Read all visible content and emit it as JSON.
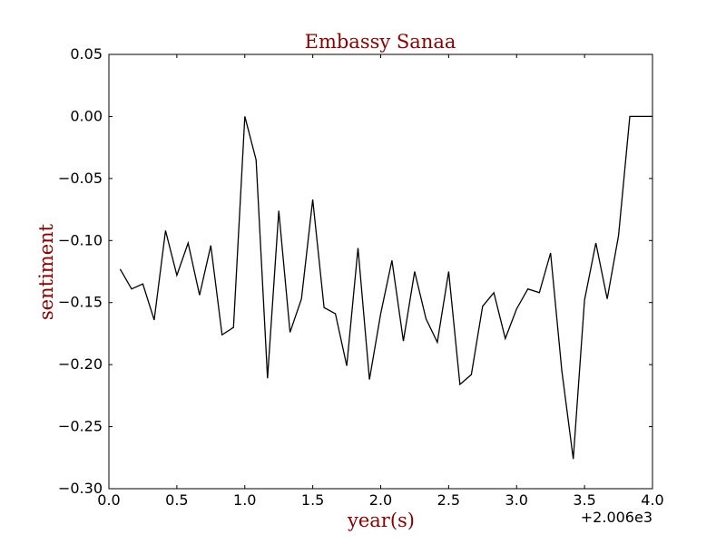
{
  "colors": {
    "text_accent": "#8b0000",
    "line": "#000000",
    "axes": "#000000",
    "background": "#ffffff"
  },
  "chart_data": {
    "type": "line",
    "title": "Embassy Sanaa",
    "xlabel": "year(s)",
    "ylabel": "sentiment",
    "offset_label": "+2.006e3",
    "xlim": [
      0.0,
      4.0
    ],
    "ylim": [
      -0.3,
      0.05
    ],
    "grid": false,
    "x_ticks": [
      0.0,
      0.5,
      1.0,
      1.5,
      2.0,
      2.5,
      3.0,
      3.5,
      4.0
    ],
    "x_tick_labels": [
      "0.0",
      "0.5",
      "1.0",
      "1.5",
      "2.0",
      "2.5",
      "3.0",
      "3.5",
      "4.0"
    ],
    "y_ticks": [
      0.05,
      0.0,
      -0.05,
      -0.1,
      -0.15,
      -0.2,
      -0.25,
      -0.3
    ],
    "y_tick_labels": [
      "0.05",
      "0.00",
      "−0.05",
      "−0.10",
      "−0.15",
      "−0.20",
      "−0.25",
      "−0.30"
    ],
    "series": [
      {
        "x": [
          0.083,
          0.167,
          0.25,
          0.333,
          0.417,
          0.5,
          0.583,
          0.667,
          0.75,
          0.833,
          0.917,
          1.0,
          1.083,
          1.167,
          1.25,
          1.333,
          1.417,
          1.5,
          1.583,
          1.667,
          1.75,
          1.833,
          1.917,
          2.0,
          2.083,
          2.167,
          2.25,
          2.333,
          2.417,
          2.5,
          2.583,
          2.667,
          2.75,
          2.833,
          2.917,
          3.0,
          3.083,
          3.167,
          3.25,
          3.333,
          3.417,
          3.5,
          3.583,
          3.667,
          3.75,
          3.833,
          3.917,
          4.0
        ],
        "y": [
          -0.123,
          -0.139,
          -0.135,
          -0.164,
          -0.092,
          -0.128,
          -0.102,
          -0.144,
          -0.104,
          -0.176,
          -0.17,
          0.0,
          -0.035,
          -0.211,
          -0.076,
          -0.174,
          -0.147,
          -0.067,
          -0.154,
          -0.159,
          -0.201,
          -0.106,
          -0.212,
          -0.159,
          -0.116,
          -0.181,
          -0.125,
          -0.163,
          -0.182,
          -0.125,
          -0.216,
          -0.208,
          -0.153,
          -0.142,
          -0.179,
          -0.155,
          -0.139,
          -0.142,
          -0.11,
          -0.205,
          -0.276,
          -0.148,
          -0.102,
          -0.147,
          -0.096,
          0.0,
          0.0,
          0.0
        ]
      }
    ]
  }
}
